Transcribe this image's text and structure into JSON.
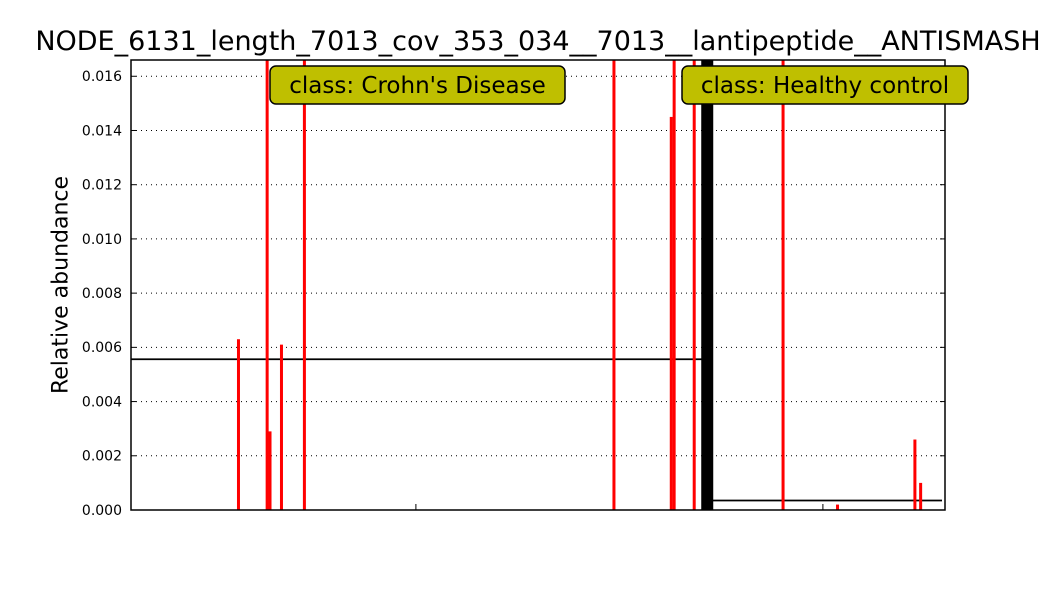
{
  "chart_data": {
    "type": "bar",
    "title": "NODE_6131_length_7013_cov_353_034__7013__lantipeptide__ANTISMASH",
    "ylabel": "Relative abundance",
    "xlabel": "",
    "ylim": [
      0,
      0.0166
    ],
    "yticks": [
      "0.000",
      "0.002",
      "0.004",
      "0.006",
      "0.008",
      "0.010",
      "0.012",
      "0.014",
      "0.016"
    ],
    "grid": "horizontal dotted",
    "colors": {
      "bar": "#ff0000",
      "mean_line": "#000000",
      "divider": "#000000",
      "class_box": "#bfbf00"
    },
    "classes": [
      {
        "label": "class: Crohn's Disease",
        "mean": 0.00556,
        "samples": [
          {
            "i": 37,
            "value": 0.0063
          },
          {
            "i": 47,
            "value": 0.0166
          },
          {
            "i": 48,
            "value": 0.0029
          },
          {
            "i": 52,
            "value": 0.0061
          },
          {
            "i": 60,
            "value": 0.0166
          },
          {
            "i": 168,
            "value": 0.0166
          },
          {
            "i": 188,
            "value": 0.0145
          },
          {
            "i": 189,
            "value": 0.0166
          },
          {
            "i": 196,
            "value": 0.0166
          }
        ]
      },
      {
        "label": "class: Healthy control",
        "mean": 0.00035,
        "samples": [
          {
            "i": 227,
            "value": 0.0166
          },
          {
            "i": 246,
            "value": 0.0002
          },
          {
            "i": 273,
            "value": 0.0026
          },
          {
            "i": 275,
            "value": 0.001
          }
        ]
      }
    ],
    "n_samples": 284,
    "boundary": 199.5
  }
}
